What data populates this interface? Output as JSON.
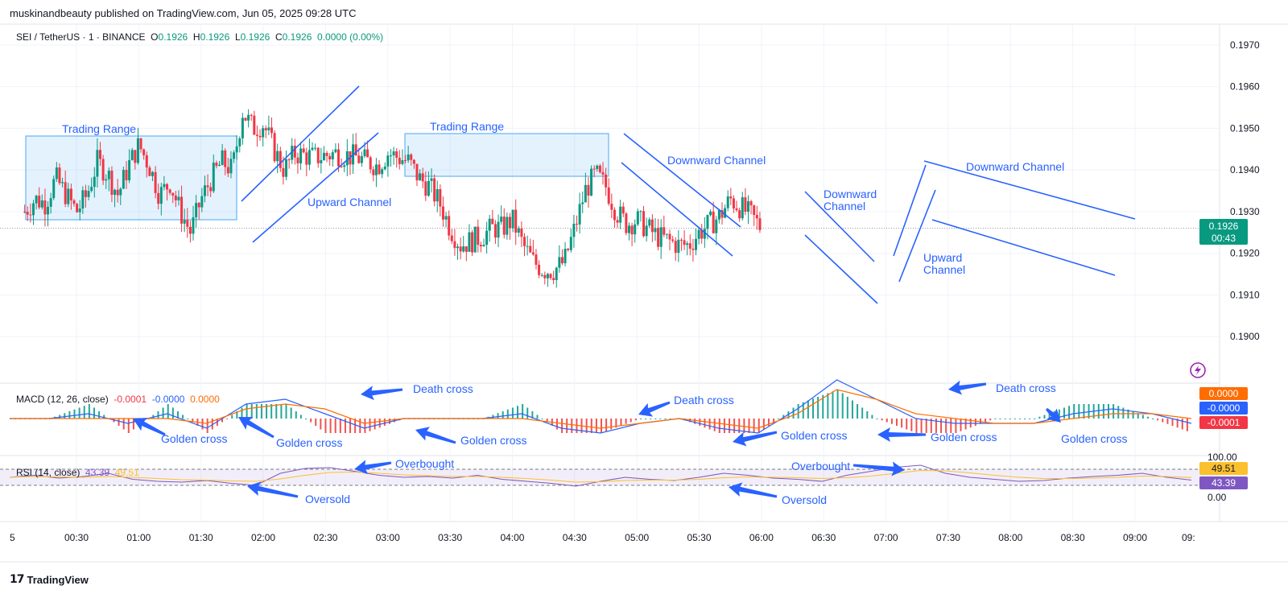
{
  "header": {
    "published": "muskinandbeauty published on TradingView.com, Jun 05, 2025 09:28 UTC"
  },
  "legend": {
    "symbol": "SEI / TetherUS · 1 · BINANCE",
    "o_label": "O",
    "o": "0.1926",
    "h_label": "H",
    "h": "0.1926",
    "l_label": "L",
    "l": "0.1926",
    "c_label": "C",
    "c": "0.1926",
    "change": "0.0000 (0.00%)"
  },
  "macd_legend": {
    "name": "MACD (12, 26, close)",
    "v1": "-0.0001",
    "v2": "-0.0000",
    "v3": "0.0000"
  },
  "rsi_legend": {
    "name": "RSI (14, close)",
    "v1": "43.39",
    "v2": "49.51"
  },
  "price_badge": {
    "price": "0.1926",
    "countdown": "00:43"
  },
  "macd_badges": [
    "0.0000",
    "-0.0000",
    "-0.0001"
  ],
  "rsi_badges": [
    "49.51",
    "43.39"
  ],
  "colors": {
    "up": "#089981",
    "down": "#f23645",
    "annotation": "#2962ff",
    "macd": "#2962ff",
    "signal": "#ff6d00",
    "rsi": "#7e57c2",
    "rsi_ma": "#fbc02d"
  },
  "footer": {
    "brand": "TradingView",
    "logo": "tradingview-logo-icon"
  },
  "chart_data": [
    {
      "type": "candlestick",
      "title": "SEI / TetherUS · 1 · BINANCE",
      "ylim": [
        0.189,
        0.1975
      ],
      "y_ticks": [
        "0.1970",
        "0.1960",
        "0.1950",
        "0.1940",
        "0.1930",
        "0.1920",
        "0.1910",
        "0.1900"
      ],
      "x_ticks": [
        "00:30",
        "01:00",
        "01:30",
        "02:00",
        "02:30",
        "03:00",
        "03:30",
        "04:00",
        "04:30",
        "05:00",
        "05:30",
        "06:00",
        "06:30",
        "07:00",
        "07:30",
        "08:00",
        "08:30",
        "09:00"
      ],
      "x_edge_labels": [
        "5",
        "09:"
      ],
      "price_path": [
        [
          0,
          0.193
        ],
        [
          5,
          0.1933
        ],
        [
          10,
          0.1932
        ],
        [
          15,
          0.1938
        ],
        [
          20,
          0.1934
        ],
        [
          25,
          0.193
        ],
        [
          30,
          0.1934
        ],
        [
          35,
          0.1942
        ],
        [
          40,
          0.1939
        ],
        [
          45,
          0.1934
        ],
        [
          50,
          0.1941
        ],
        [
          55,
          0.1946
        ],
        [
          60,
          0.1941
        ],
        [
          65,
          0.1934
        ],
        [
          70,
          0.1937
        ],
        [
          75,
          0.193
        ],
        [
          80,
          0.1925
        ],
        [
          85,
          0.1933
        ],
        [
          90,
          0.1938
        ],
        [
          95,
          0.1942
        ],
        [
          100,
          0.194
        ],
        [
          105,
          0.1954
        ],
        [
          110,
          0.195
        ],
        [
          115,
          0.1951
        ],
        [
          120,
          0.1945
        ],
        [
          125,
          0.194
        ],
        [
          130,
          0.1944
        ],
        [
          140,
          0.1943
        ],
        [
          150,
          0.1944
        ],
        [
          160,
          0.1943
        ],
        [
          170,
          0.1941
        ],
        [
          175,
          0.1944
        ],
        [
          180,
          0.1943
        ],
        [
          185,
          0.1942
        ],
        [
          190,
          0.1938
        ],
        [
          195,
          0.1936
        ],
        [
          200,
          0.1932
        ],
        [
          205,
          0.1926
        ],
        [
          210,
          0.1922
        ],
        [
          215,
          0.1923
        ],
        [
          220,
          0.1924
        ],
        [
          225,
          0.1926
        ],
        [
          230,
          0.1926
        ],
        [
          235,
          0.1928
        ],
        [
          240,
          0.1922
        ],
        [
          245,
          0.1918
        ],
        [
          250,
          0.1916
        ],
        [
          255,
          0.1916
        ],
        [
          260,
          0.1918
        ],
        [
          265,
          0.1926
        ],
        [
          270,
          0.1935
        ],
        [
          275,
          0.1939
        ],
        [
          280,
          0.1936
        ],
        [
          285,
          0.193
        ],
        [
          290,
          0.1927
        ],
        [
          295,
          0.1928
        ],
        [
          300,
          0.1926
        ],
        [
          305,
          0.1924
        ],
        [
          310,
          0.1923
        ],
        [
          315,
          0.1922
        ],
        [
          320,
          0.1922
        ],
        [
          325,
          0.1925
        ],
        [
          330,
          0.1927
        ],
        [
          335,
          0.1929
        ],
        [
          340,
          0.1933
        ],
        [
          345,
          0.1931
        ],
        [
          350,
          0.1929
        ],
        [
          355,
          0.1926
        ]
      ],
      "annotations": [
        "Trading Range",
        "Upward Channel",
        "Trading Range",
        "Downward Channel",
        "Downward Channel",
        "Upward Channel",
        "Downward Channel"
      ]
    },
    {
      "type": "line",
      "title": "MACD (12, 26, close)",
      "series": [
        {
          "name": "MACD",
          "values": [
            0.0,
            0.0,
            0.0001,
            -0.0001,
            0.0001,
            -0.0002,
            0.0003,
            0.0004,
            0.0001,
            -0.0002,
            0.0,
            0.0,
            0.0,
            0.0001,
            -0.0002,
            -0.0003,
            -0.0001,
            0.0,
            -0.0002,
            -0.0003,
            0.0002,
            0.0008,
            0.0004,
            0.0,
            -0.0001,
            -0.0001,
            -0.0001,
            0.0001,
            0.0002,
            0.0001,
            -0.0001
          ]
        },
        {
          "name": "Signal",
          "values": [
            0.0,
            0.0,
            0.0,
            0.0,
            0.0,
            -0.0001,
            0.0002,
            0.0003,
            0.0002,
            -0.0001,
            0.0,
            0.0,
            0.0,
            0.0,
            -0.0001,
            -0.0002,
            -0.0001,
            0.0,
            -0.0001,
            -0.0002,
            0.0001,
            0.0006,
            0.0004,
            0.0001,
            0.0,
            -0.0001,
            -0.0001,
            0.0,
            0.0001,
            0.0001,
            0.0
          ]
        }
      ],
      "annotations": [
        "Death cross",
        "Death cross",
        "Death cross",
        "Golden cross",
        "Golden cross",
        "Golden cross",
        "Golden cross",
        "Golden cross",
        "Golden cross"
      ]
    },
    {
      "type": "line",
      "title": "RSI (14, close)",
      "y_ticks": [
        "100.00",
        "0.00"
      ],
      "bands": [
        70,
        30
      ],
      "series": [
        {
          "name": "RSI",
          "values": [
            50,
            55,
            48,
            52,
            60,
            45,
            40,
            38,
            42,
            35,
            30,
            60,
            72,
            74,
            65,
            55,
            50,
            52,
            48,
            55,
            45,
            40,
            35,
            28,
            40,
            50,
            45,
            42,
            50,
            60,
            55,
            48,
            45,
            40,
            55,
            65,
            75,
            80,
            60,
            50,
            45,
            40,
            42,
            48,
            52,
            55,
            60,
            50,
            43
          ]
        },
        {
          "name": "RSI MA",
          "values": [
            50,
            52,
            51,
            50,
            52,
            50,
            47,
            44,
            43,
            41,
            40,
            46,
            55,
            62,
            63,
            60,
            56,
            54,
            52,
            52,
            50,
            47,
            43,
            38,
            39,
            42,
            43,
            43,
            45,
            49,
            51,
            50,
            49,
            47,
            49,
            53,
            60,
            67,
            66,
            61,
            55,
            50,
            47,
            47,
            48,
            50,
            53,
            52,
            49.5
          ]
        }
      ],
      "annotations": [
        "Overbought",
        "Overbought",
        "Oversold",
        "Oversold"
      ]
    }
  ],
  "annotation_text": {
    "trading_range_1": "Trading Range",
    "upward_channel_1": "Upward Channel",
    "trading_range_2": "Trading Range",
    "downward_channel_1": "Downward Channel",
    "downward_channel_2a": "Downward",
    "downward_channel_2b": "Channel",
    "upward_channel_2a": "Upward",
    "upward_channel_2b": "Channel",
    "downward_channel_3": "Downward Channel",
    "death_cross_1": "Death cross",
    "death_cross_2": "Death cross",
    "death_cross_3": "Death cross",
    "golden_cross_1": "Golden cross",
    "golden_cross_2": "Golden cross",
    "golden_cross_3": "Golden cross",
    "golden_cross_4": "Golden cross",
    "golden_cross_5": "Golden cross",
    "golden_cross_6": "Golden cross",
    "overbought_1": "Overbought",
    "overbought_2": "Overbought",
    "oversold_1": "Oversold",
    "oversold_2": "Oversold"
  }
}
